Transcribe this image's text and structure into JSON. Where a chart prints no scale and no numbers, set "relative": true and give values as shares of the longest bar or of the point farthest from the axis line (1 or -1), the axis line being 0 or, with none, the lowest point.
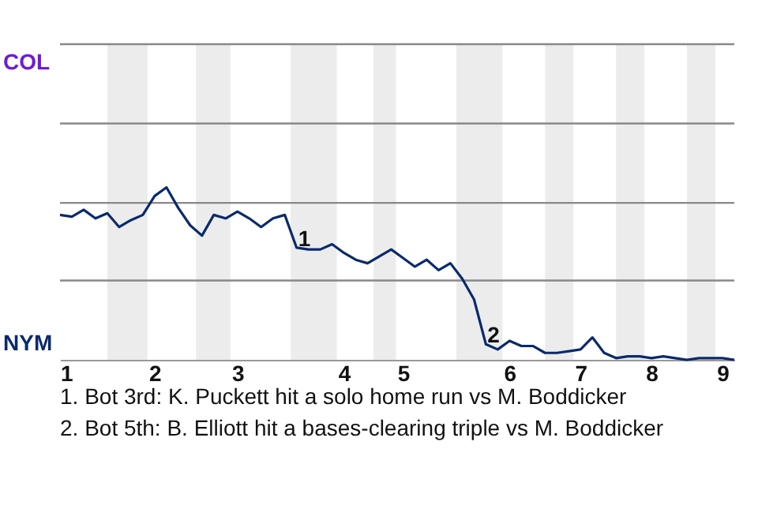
{
  "chart_data": {
    "type": "line",
    "categories": [
      "1",
      null,
      null,
      null,
      null,
      null,
      null,
      null,
      "2",
      null,
      null,
      null,
      null,
      null,
      null,
      "3",
      null,
      null,
      null,
      null,
      null,
      null,
      null,
      null,
      "4",
      null,
      null,
      null,
      null,
      "5",
      null,
      null,
      null,
      null,
      null,
      null,
      null,
      null,
      "6",
      null,
      null,
      null,
      null,
      null,
      "7",
      null,
      null,
      null,
      null,
      null,
      "8",
      null,
      null,
      null,
      null,
      null,
      "9",
      null
    ],
    "relative": true,
    "series": [
      {
        "color": "#0a2a6c",
        "values": [
          0.84,
          0.83,
          0.87,
          0.82,
          0.85,
          0.77,
          0.81,
          0.84,
          0.95,
          1,
          0.88,
          0.78,
          0.72,
          0.84,
          0.82,
          0.86,
          0.82,
          0.77,
          0.82,
          0.84,
          0.65,
          0.64,
          0.64,
          0.67,
          0.62,
          0.58,
          0.56,
          0.6,
          0.64,
          0.59,
          0.54,
          0.58,
          0.52,
          0.56,
          0.47,
          0.35,
          0.09,
          0.06,
          0.11,
          0.08,
          0.08,
          0.04,
          0.04,
          0.05,
          0.06,
          0.13,
          0.04,
          0.01,
          0.02,
          0.02,
          0.01,
          0.02,
          0.01,
          0,
          0.01,
          0.01,
          0.01,
          0
        ]
      }
    ],
    "ref_lines": [
      {
        "axis": "y",
        "value": 0.46,
        "color": "#888888"
      },
      {
        "axis": "y",
        "value": 0.91,
        "color": "#888888"
      },
      {
        "axis": "y",
        "value": 1.37,
        "color": "#888888"
      },
      {
        "axis": "y",
        "value": 1.83,
        "color": "#888888"
      }
    ],
    "annotations": [
      "COL",
      "NYM",
      {
        "text": "1",
        "y": 0.65
      },
      {
        "text": "2",
        "y": 0.09
      },
      "1. Bot 3rd: K. Puckett hit a solo home run vs M. Boddicker",
      "2. Bot 5th: B. Elliott hit a bases-clearing triple vs M. Boddicker"
    ],
    "marker": "none",
    "line_style": "solid"
  }
}
